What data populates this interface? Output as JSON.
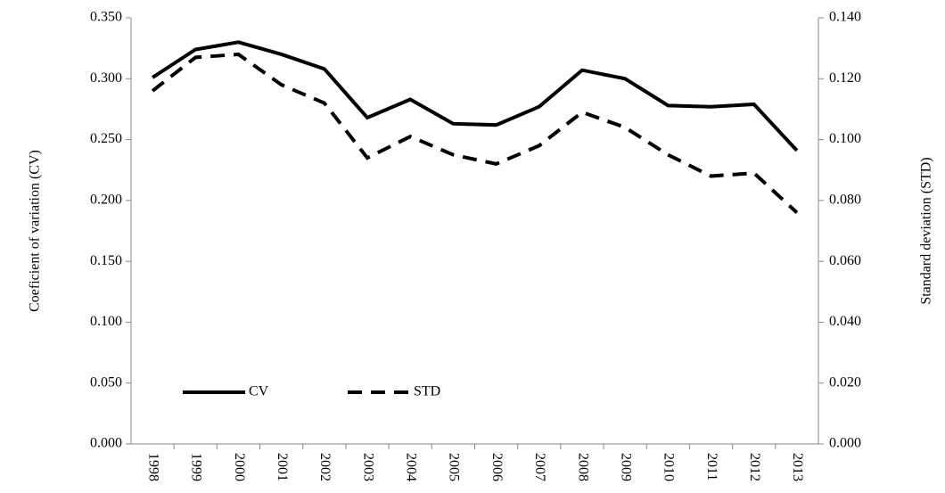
{
  "chart_data": {
    "type": "line",
    "ylabel": "Coeficient of variation (CV)",
    "y2label": "Standard deviation  (STD)",
    "categories": [
      "1998",
      "1999",
      "2000",
      "2001",
      "2002",
      "2003",
      "2004",
      "2005",
      "2006",
      "2007",
      "2008",
      "2009",
      "2010",
      "2011",
      "2012",
      "2013"
    ],
    "series": [
      {
        "name": "CV",
        "color": "#000000",
        "dash": "solid",
        "values": [
          0.301,
          0.324,
          0.33,
          0.32,
          0.308,
          0.268,
          0.283,
          0.263,
          0.262,
          0.277,
          0.307,
          0.3,
          0.278,
          0.277,
          0.279,
          0.241
        ]
      },
      {
        "name": "STD",
        "color": "#000000",
        "dash": "dashed",
        "axis": "y2",
        "values": [
          0.116,
          0.127,
          0.128,
          0.118,
          0.112,
          0.094,
          0.101,
          0.095,
          0.092,
          0.098,
          0.109,
          0.104,
          0.095,
          0.088,
          0.089,
          0.076
        ]
      }
    ],
    "ylim": [
      0,
      0.35
    ],
    "yticks": [
      {
        "value": 0,
        "label": "0.000"
      },
      {
        "value": 0.05,
        "label": "0.050"
      },
      {
        "value": 0.1,
        "label": "0.100"
      },
      {
        "value": 0.15,
        "label": "0.150"
      },
      {
        "value": 0.2,
        "label": "0.200"
      },
      {
        "value": 0.25,
        "label": "0.250"
      },
      {
        "value": 0.3,
        "label": "0.300"
      },
      {
        "value": 0.35,
        "label": "0.350"
      }
    ],
    "y2lim": [
      0,
      0.14
    ],
    "y2ticks": [
      {
        "value": 0,
        "label": "0.000"
      },
      {
        "value": 0.02,
        "label": "0.020"
      },
      {
        "value": 0.04,
        "label": "0.040"
      },
      {
        "value": 0.06,
        "label": "0.060"
      },
      {
        "value": 0.08,
        "label": "0.080"
      },
      {
        "value": 0.1,
        "label": "0.100"
      },
      {
        "value": 0.12,
        "label": "0.120"
      },
      {
        "value": 0.14,
        "label": "0.140"
      }
    ],
    "grid": false,
    "legend": "lower left"
  }
}
